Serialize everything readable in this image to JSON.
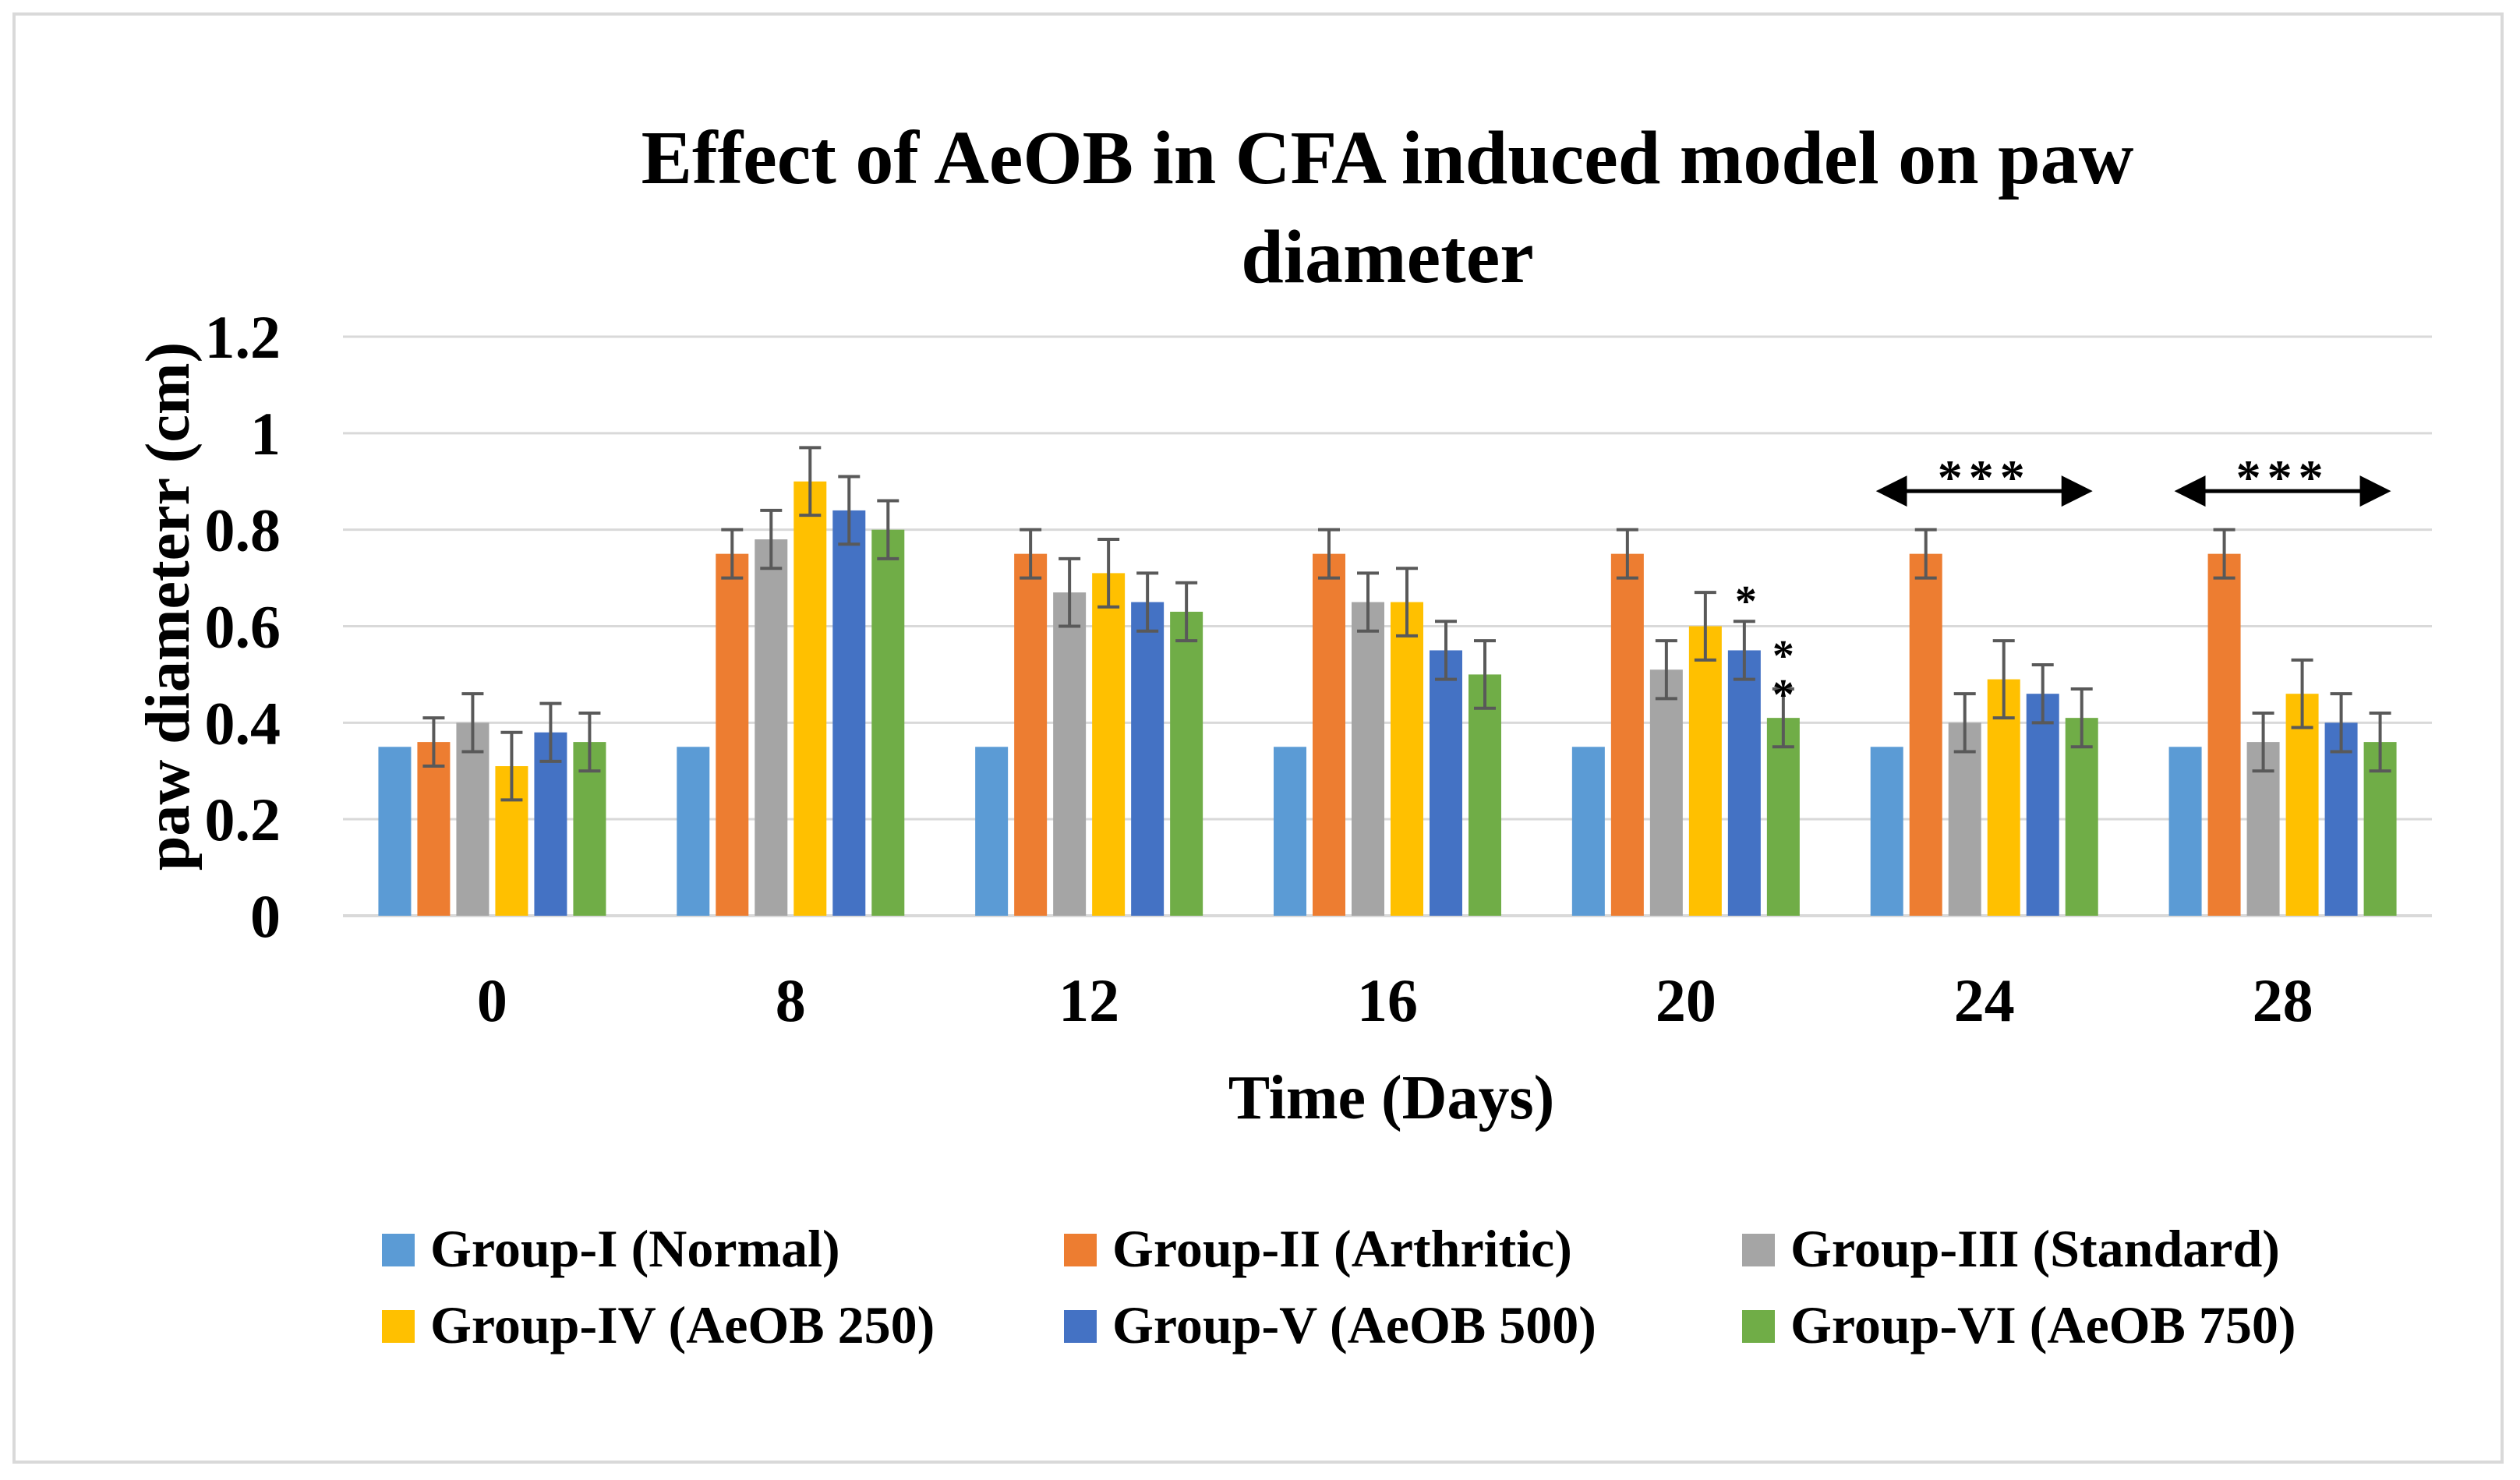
{
  "chart_data": {
    "type": "bar",
    "title_lines": [
      "Effect of AeOB in CFA induced model on paw",
      "diameter"
    ],
    "xlabel": "Time (Days)",
    "ylabel": "paw diameterr (cm)",
    "ylim": [
      0,
      1.2
    ],
    "yticks": [
      "0",
      "0.2",
      "0.4",
      "0.6",
      "0.8",
      "1",
      "1.2"
    ],
    "grid": true,
    "legend_position": "bottom",
    "categories": [
      "0",
      "8",
      "12",
      "16",
      "20",
      "24",
      "28"
    ],
    "series": [
      {
        "name": "Group-I (Normal)",
        "color": "#5B9BD5",
        "values": [
          0.35,
          0.35,
          0.35,
          0.35,
          0.35,
          0.35,
          0.35
        ],
        "errors": [
          0,
          0,
          0,
          0,
          0,
          0,
          0
        ]
      },
      {
        "name": "Group-II (Arthritic)",
        "color": "#ED7D31",
        "values": [
          0.36,
          0.75,
          0.75,
          0.75,
          0.75,
          0.75,
          0.75
        ],
        "errors": [
          0.05,
          0.05,
          0.05,
          0.05,
          0.05,
          0.05,
          0.05
        ]
      },
      {
        "name": "Group-III (Standard)",
        "color": "#A5A5A5",
        "values": [
          0.4,
          0.78,
          0.67,
          0.65,
          0.51,
          0.4,
          0.36
        ],
        "errors": [
          0.06,
          0.06,
          0.07,
          0.06,
          0.06,
          0.06,
          0.06
        ]
      },
      {
        "name": "Group-IV (AeOB 250)",
        "color": "#FFC000",
        "values": [
          0.31,
          0.9,
          0.71,
          0.65,
          0.6,
          0.49,
          0.46
        ],
        "errors": [
          0.07,
          0.07,
          0.07,
          0.07,
          0.07,
          0.08,
          0.07
        ]
      },
      {
        "name": "Group-V (AeOB 500)",
        "color": "#4472C4",
        "values": [
          0.38,
          0.84,
          0.65,
          0.55,
          0.55,
          0.46,
          0.4
        ],
        "errors": [
          0.06,
          0.07,
          0.06,
          0.06,
          0.06,
          0.06,
          0.06
        ]
      },
      {
        "name": "Group-VI (AeOB 750)",
        "color": "#70AD47",
        "values": [
          0.36,
          0.8,
          0.63,
          0.5,
          0.41,
          0.41,
          0.36
        ],
        "errors": [
          0.06,
          0.06,
          0.06,
          0.07,
          0.06,
          0.06,
          0.06
        ]
      }
    ],
    "annotations": [
      {
        "category": "20",
        "text": "* * *",
        "style": "vertical",
        "over_series": "Group-VI (AeOB 750)"
      },
      {
        "category": "24",
        "text": "***",
        "style": "double-arrow",
        "level": 0.88
      },
      {
        "category": "28",
        "text": "***",
        "style": "double-arrow",
        "level": 0.88
      }
    ]
  }
}
